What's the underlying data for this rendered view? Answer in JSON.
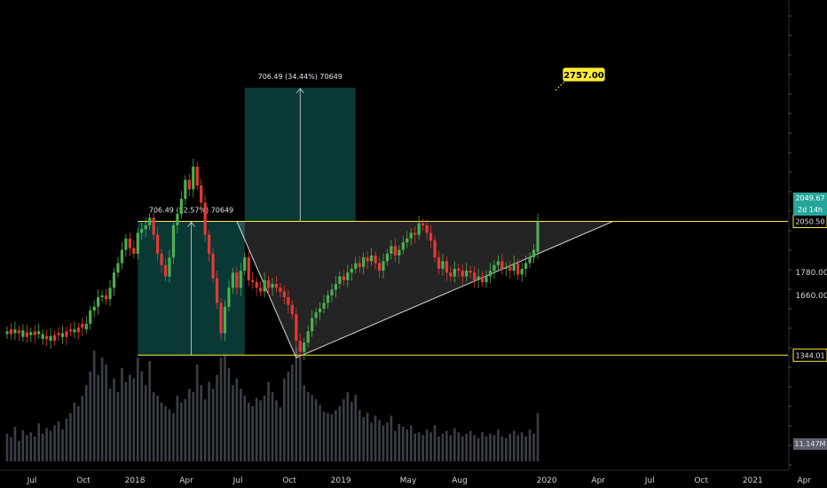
{
  "chart_data": {
    "type": "candlestick",
    "ylim": [
      1200,
      3220
    ],
    "price_axis_ticks": [
      1660.0,
      1780.0
    ],
    "time_axis_labels": [
      {
        "label": "Jul",
        "t": 0
      },
      {
        "label": "Oct",
        "t": 13
      },
      {
        "label": "2018",
        "t": 26
      },
      {
        "label": "Apr",
        "t": 39
      },
      {
        "label": "Jul",
        "t": 52
      },
      {
        "label": "Oct",
        "t": 65
      },
      {
        "label": "2019",
        "t": 78
      },
      {
        "label": "May",
        "t": 95
      },
      {
        "label": "Aug",
        "t": 108
      },
      {
        "label": "2020",
        "t": 130
      },
      {
        "label": "Apr",
        "t": 143
      },
      {
        "label": "Jul",
        "t": 156
      },
      {
        "label": "Oct",
        "t": 169
      },
      {
        "label": "2021",
        "t": 182
      },
      {
        "label": "Apr",
        "t": 195
      }
    ],
    "levels": [
      {
        "name": "resistance",
        "value": 2050.5,
        "label": "2050.50",
        "color": "#ffeb3b"
      },
      {
        "name": "support",
        "value": 1344.01,
        "label": "1344.01",
        "color": "#ffeb3b"
      }
    ],
    "price_tags": [
      {
        "value": 2049.67,
        "label": "2049.67",
        "color": "#26a69a"
      },
      {
        "value": 2005.0,
        "label": "2d 14h",
        "color": "#26a69a"
      }
    ],
    "volume_tag": {
      "label": "11.147M"
    },
    "measurements": [
      {
        "text": "706.49 (52.57%) 70649",
        "t_start": 33,
        "t_end": 60,
        "low": 1344.01,
        "high": 2050.5
      },
      {
        "text": "706.49 (34.44%) 70649",
        "t_start": 60,
        "t_end": 88,
        "low": 2050.5,
        "high": 2757.0
      }
    ],
    "triangle": [
      {
        "t": 58,
        "v": 2050.5
      },
      {
        "t": 153,
        "v": 2050.5
      },
      {
        "t": 73,
        "v": 1330.0
      }
    ],
    "target": {
      "label": "2757.00",
      "t": 136,
      "v": 2750.0
    },
    "candles": {
      "closes": [
        1470,
        1455,
        1480,
        1460,
        1475,
        1440,
        1465,
        1450,
        1470,
        1455,
        1430,
        1445,
        1420,
        1450,
        1460,
        1440,
        1470,
        1480,
        1465,
        1490,
        1510,
        1580,
        1600,
        1650,
        1660,
        1640,
        1700,
        1780,
        1830,
        1900,
        1960,
        1910,
        1880,
        1990,
        2010,
        2030,
        2070,
        1980,
        1880,
        1820,
        1760,
        1860,
        2030,
        2090,
        2170,
        2270,
        2220,
        2340,
        2240,
        2150,
        1980,
        1880,
        1750,
        1620,
        1460,
        1600,
        1700,
        1780,
        1700,
        1790,
        1860,
        1740,
        1730,
        1700,
        1680,
        1740,
        1700,
        1720,
        1700,
        1680,
        1650,
        1610,
        1560,
        1420,
        1360,
        1410,
        1470,
        1540,
        1570,
        1590,
        1620,
        1660,
        1690,
        1720,
        1760,
        1740,
        1780,
        1800,
        1830,
        1810,
        1860,
        1840,
        1870,
        1830,
        1790,
        1840,
        1880,
        1920,
        1870,
        1900,
        1940,
        1960,
        1990,
        1980,
        2040,
        2030,
        1990,
        1950,
        1860,
        1800,
        1840,
        1780,
        1760,
        1800,
        1790,
        1760,
        1790,
        1780,
        1740,
        1760,
        1730,
        1760,
        1790,
        1820,
        1840,
        1800,
        1810,
        1790,
        1830,
        1770,
        1800,
        1830,
        1860,
        1900,
        2050
      ],
      "opens": [
        1455,
        1480,
        1460,
        1475,
        1440,
        1465,
        1450,
        1470,
        1455,
        1430,
        1445,
        1420,
        1450,
        1460,
        1440,
        1470,
        1480,
        1465,
        1490,
        1510,
        1480,
        1510,
        1580,
        1600,
        1650,
        1660,
        1640,
        1700,
        1780,
        1830,
        1900,
        1960,
        1910,
        1880,
        1990,
        2010,
        2030,
        2070,
        1980,
        1880,
        1820,
        1760,
        1860,
        2030,
        2090,
        2170,
        2270,
        2220,
        2340,
        2240,
        2150,
        1980,
        1880,
        1750,
        1620,
        1460,
        1600,
        1700,
        1780,
        1700,
        1790,
        1860,
        1740,
        1730,
        1700,
        1680,
        1740,
        1700,
        1720,
        1700,
        1680,
        1650,
        1610,
        1560,
        1420,
        1360,
        1410,
        1470,
        1540,
        1570,
        1590,
        1620,
        1660,
        1690,
        1720,
        1760,
        1740,
        1780,
        1800,
        1830,
        1810,
        1860,
        1840,
        1870,
        1830,
        1790,
        1840,
        1880,
        1920,
        1870,
        1900,
        1940,
        1960,
        1990,
        1980,
        2040,
        2030,
        1990,
        1950,
        1860,
        1800,
        1840,
        1780,
        1760,
        1800,
        1790,
        1760,
        1790,
        1780,
        1740,
        1760,
        1730,
        1760,
        1790,
        1820,
        1840,
        1800,
        1810,
        1790,
        1830,
        1770,
        1800,
        1830,
        1860,
        1890
      ],
      "volumes": [
        40,
        35,
        50,
        30,
        45,
        38,
        42,
        36,
        55,
        40,
        48,
        44,
        52,
        58,
        46,
        62,
        70,
        85,
        80,
        95,
        110,
        130,
        160,
        125,
        150,
        140,
        105,
        120,
        100,
        135,
        115,
        125,
        120,
        150,
        130,
        110,
        145,
        100,
        95,
        85,
        80,
        75,
        70,
        95,
        85,
        90,
        105,
        100,
        140,
        110,
        90,
        115,
        105,
        125,
        150,
        160,
        135,
        110,
        120,
        105,
        95,
        85,
        80,
        92,
        88,
        95,
        115,
        100,
        88,
        78,
        120,
        130,
        140,
        165,
        150,
        110,
        100,
        96,
        90,
        82,
        72,
        70,
        68,
        74,
        80,
        90,
        100,
        86,
        96,
        74,
        64,
        70,
        56,
        66,
        60,
        52,
        56,
        66,
        44,
        54,
        50,
        46,
        52,
        40,
        42,
        38,
        46,
        42,
        52,
        36,
        40,
        44,
        38,
        48,
        42,
        36,
        40,
        44,
        38,
        34,
        42,
        36,
        40,
        38,
        46,
        36,
        34,
        40,
        44,
        38,
        42,
        36,
        46,
        40,
        70
      ]
    }
  }
}
